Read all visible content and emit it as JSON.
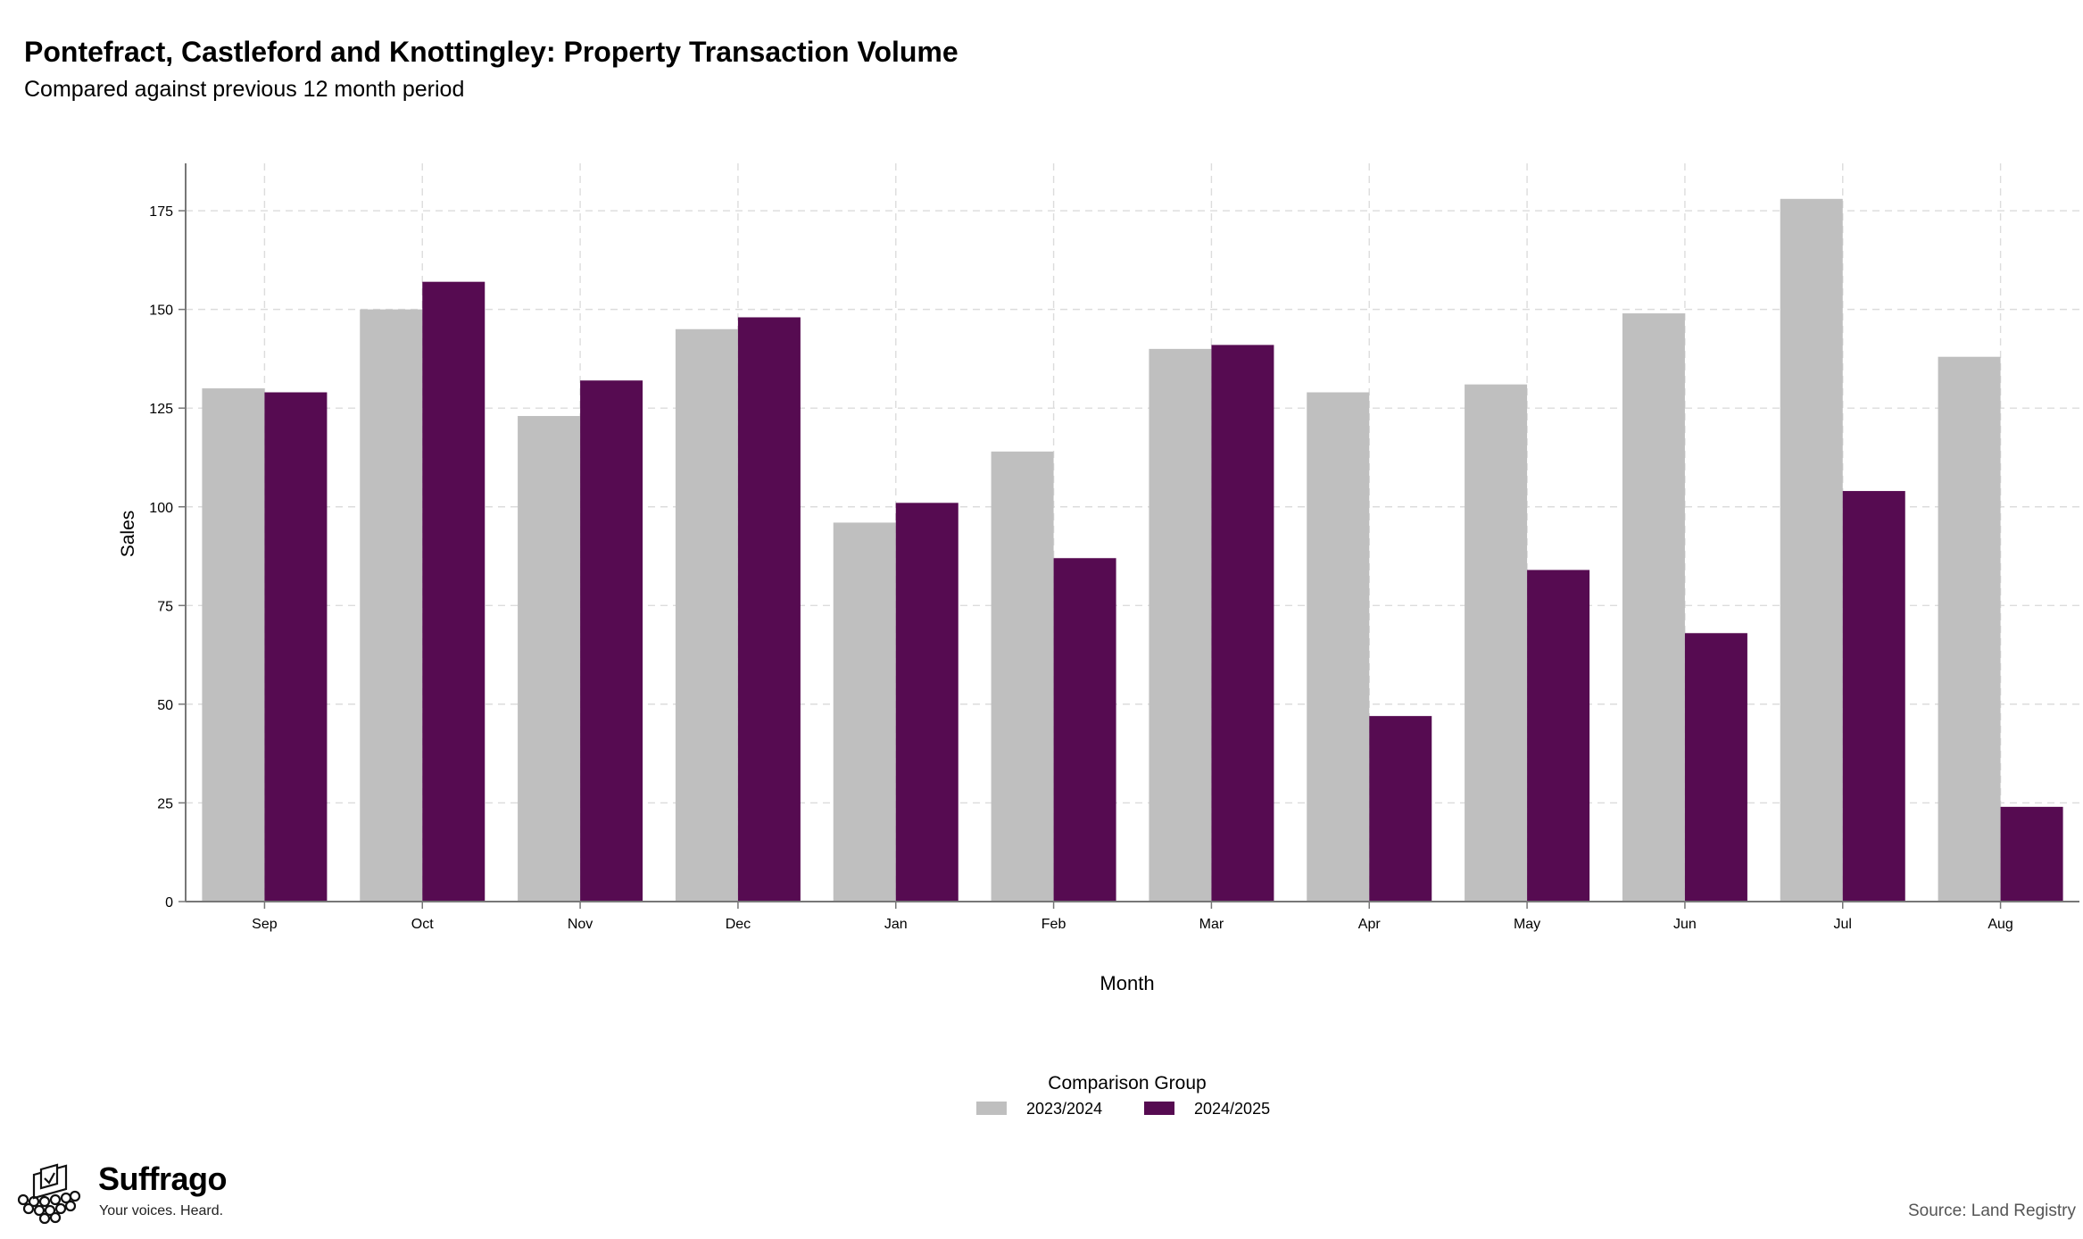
{
  "header": {
    "title": "Pontefract, Castleford and Knottingley: Property Transaction Volume",
    "subtitle": "Compared against previous 12 month period"
  },
  "footer": {
    "brand": "Suffrago",
    "tagline": "Your voices. Heard.",
    "source": "Source: Land Registry"
  },
  "colors": {
    "series_2023_2024": "#bfbfbf",
    "series_2024_2025": "#560b51",
    "grid": "#dcdcdc",
    "axis": "#777777"
  },
  "chart_data": {
    "type": "bar",
    "title": "Pontefract, Castleford and Knottingley: Property Transaction Volume",
    "subtitle": "Compared against previous 12 month period",
    "xlabel": "Month",
    "ylabel": "Sales",
    "categories": [
      "Sep",
      "Oct",
      "Nov",
      "Dec",
      "Jan",
      "Feb",
      "Mar",
      "Apr",
      "May",
      "Jun",
      "Jul",
      "Aug"
    ],
    "series": [
      {
        "name": "2023/2024",
        "values": [
          130,
          150,
          123,
          145,
          96,
          114,
          140,
          129,
          131,
          149,
          178,
          138
        ]
      },
      {
        "name": "2024/2025",
        "values": [
          129,
          157,
          132,
          148,
          101,
          87,
          141,
          47,
          84,
          68,
          104,
          24
        ]
      }
    ],
    "ylim": [
      0,
      187
    ],
    "yticks": [
      0,
      25,
      50,
      75,
      100,
      125,
      150,
      175
    ],
    "grid": true,
    "legend": {
      "title": "Comparison Group",
      "position": "bottom"
    }
  }
}
